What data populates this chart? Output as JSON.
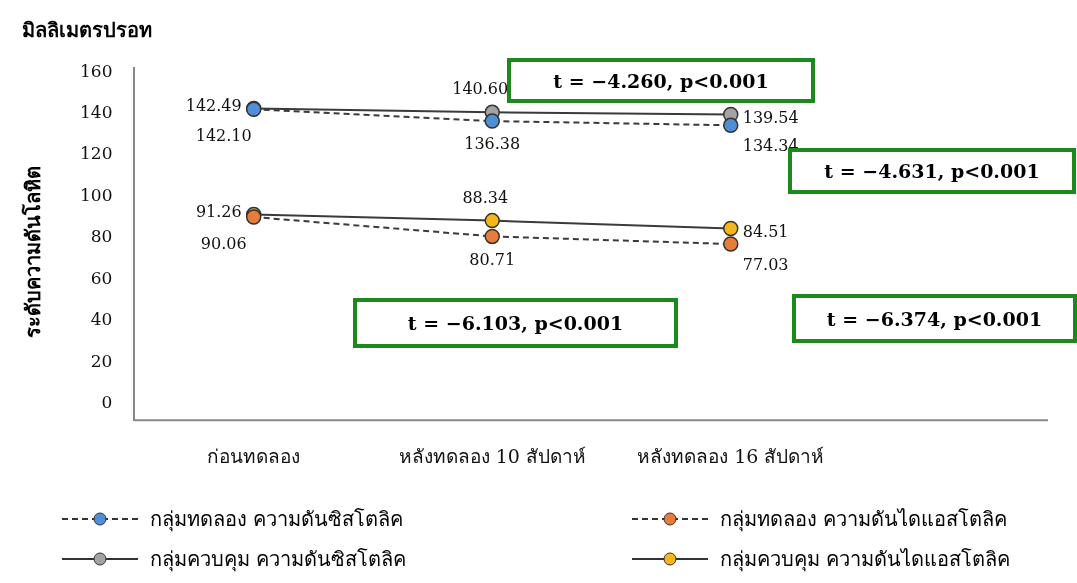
{
  "chart_data": {
    "type": "line",
    "title": "มิลลิเมตรปรอท",
    "ylabel": "ระดับความดันโลหิต",
    "categories": [
      "ก่อนทดลอง",
      "หลังทดลอง 10 สัปดาห์",
      "หลังทดลอง 16 สัปดาห์"
    ],
    "series": [
      {
        "name": "กลุ่มทดลอง  ความดันซิสโตลิค",
        "color": "#4f8fd6",
        "values": [
          142.1,
          136.38,
          134.34
        ],
        "value_labels": [
          "142.10",
          "136.38",
          "134.34"
        ],
        "line_style": "dashed"
      },
      {
        "name": "กลุ่มทดลอง  ความดันไดแอสโตลิค",
        "color": "#e87d3a",
        "values": [
          90.06,
          80.71,
          77.03
        ],
        "value_labels": [
          "90.06",
          "80.71",
          "77.03"
        ],
        "line_style": "dashed"
      },
      {
        "name": "กลุ่มควบคุม  ความดันซิสโตลิค",
        "color": "#a3a3a3",
        "values": [
          142.49,
          140.6,
          139.54
        ],
        "value_labels": [
          "142.49",
          "140.60",
          "139.54"
        ],
        "line_style": "solid"
      },
      {
        "name": "กลุ่มควบคุม  ความดันไดแอสโตลิค",
        "color": "#f5b51c",
        "values": [
          91.26,
          88.34,
          84.51
        ],
        "value_labels": [
          "91.26",
          "88.34",
          "84.51"
        ],
        "line_style": "solid"
      }
    ],
    "ylim": [
      -8,
      162
    ],
    "yticks": [
      0,
      20,
      40,
      60,
      80,
      100,
      120,
      140,
      160
    ],
    "grid": false,
    "marker": "circle",
    "legend": "bottom",
    "annotations": [
      "t = −4.260, p<0.001",
      "t = −4.631, p<0.001",
      "t = −6.103, p<0.001",
      "t = −6.374, p<0.001"
    ]
  }
}
